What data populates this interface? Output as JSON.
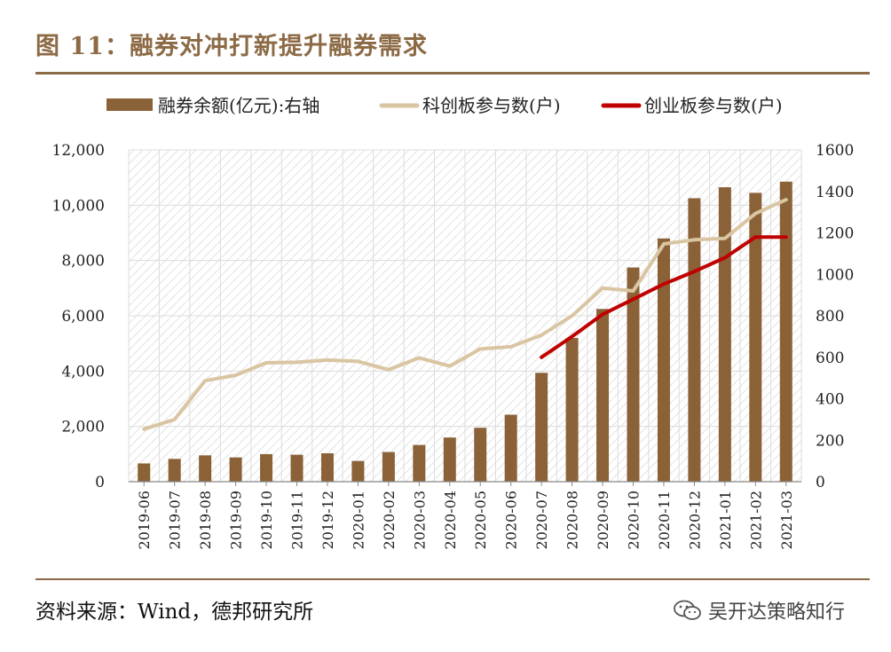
{
  "title": "图 11：融券对冲打新提升融券需求",
  "source": "资料来源：Wind，德邦研究所",
  "brand": "吴开达策略知行",
  "colors": {
    "accent": "#8c6a45",
    "bar": "#8b6238",
    "line_star": "#d9c5a2",
    "line_chinext": "#c00000"
  },
  "icons": {
    "wechat": "wechat-icon"
  },
  "chart_data": {
    "type": "bar+line",
    "categories": [
      "2019-06",
      "2019-07",
      "2019-08",
      "2019-09",
      "2019-10",
      "2019-11",
      "2019-12",
      "2020-01",
      "2020-02",
      "2020-03",
      "2020-04",
      "2020-05",
      "2020-06",
      "2020-07",
      "2020-08",
      "2020-09",
      "2020-10",
      "2020-11",
      "2020-12",
      "2021-01",
      "2021-02",
      "2021-03"
    ],
    "left_axis": {
      "ylim": [
        0,
        12000
      ],
      "ticks": [
        "0",
        "2,000",
        "4,000",
        "6,000",
        "8,000",
        "10,000",
        "12,000"
      ]
    },
    "right_axis": {
      "ylim": [
        0,
        1600
      ],
      "ticks": [
        "0",
        "200",
        "400",
        "600",
        "800",
        "1000",
        "1200",
        "1400",
        "1600"
      ]
    },
    "series": [
      {
        "name": "融券余额(亿元):右轴",
        "type": "bar",
        "axis": "right",
        "values": [
          88,
          110,
          127,
          117,
          133,
          130,
          137,
          100,
          143,
          177,
          213,
          260,
          323,
          525,
          693,
          833,
          1033,
          1173,
          1367,
          1420,
          1393,
          1447
        ]
      },
      {
        "name": "科创板参与数(户)",
        "type": "line",
        "axis": "left",
        "values": [
          1900,
          2250,
          3650,
          3850,
          4300,
          4320,
          4400,
          4350,
          4050,
          4480,
          4180,
          4800,
          4880,
          5300,
          6000,
          7000,
          6900,
          8600,
          8750,
          8800,
          9700,
          10200
        ]
      },
      {
        "name": "创业板参与数(户)",
        "type": "line",
        "axis": "left",
        "values": [
          null,
          null,
          null,
          null,
          null,
          null,
          null,
          null,
          null,
          null,
          null,
          null,
          null,
          4500,
          5250,
          6050,
          6600,
          7150,
          7600,
          8100,
          8850,
          8850
        ]
      }
    ]
  }
}
